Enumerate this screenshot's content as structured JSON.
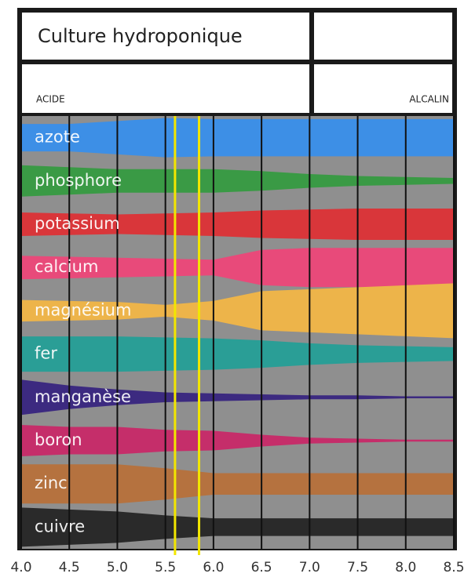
{
  "chart_data": {
    "type": "band",
    "title": "Culture hydroponique",
    "left_label": "ACIDE",
    "right_label": "ALCALIN",
    "x": [
      4.0,
      4.5,
      5.0,
      5.5,
      6.0,
      6.5,
      7.0,
      7.5,
      8.0,
      8.5
    ],
    "xlim": [
      4.0,
      8.5
    ],
    "xticks": [
      {
        "value": 4,
        "label": "4.0"
      },
      4.5,
      {
        "value": 5,
        "label": "5.0"
      },
      5.5,
      {
        "value": 6,
        "label": "6.0"
      },
      6.5,
      {
        "value": 7,
        "label": "7.0"
      },
      7.5,
      {
        "value": 8,
        "label": "8.0"
      },
      8.5
    ],
    "highlight": [
      5.6,
      5.85
    ],
    "highlight_color": "#f2e600",
    "background": "#8f8f8f",
    "series": [
      {
        "name": "azote",
        "color": "#3d8fe6",
        "values": [
          0.7,
          0.7,
          0.85,
          1,
          0.95,
          0.95,
          0.95,
          0.95,
          0.95,
          0.95
        ]
      },
      {
        "name": "phosphore",
        "color": "#3a9a45",
        "values": [
          0.8,
          0.7,
          0.6,
          0.6,
          0.6,
          0.5,
          0.35,
          0.25,
          0.2,
          0.15
        ]
      },
      {
        "name": "potassium",
        "color": "#d9363a",
        "values": [
          0.6,
          0.55,
          0.5,
          0.55,
          0.6,
          0.7,
          0.75,
          0.8,
          0.8,
          0.8
        ]
      },
      {
        "name": "calcium",
        "color": "#e84a7a",
        "values": [
          0.6,
          0.55,
          0.5,
          0.45,
          0.4,
          0.9,
          1,
          1,
          1,
          1
        ]
      },
      {
        "name": "magnésium",
        "color": "#edb44a",
        "values": [
          0.55,
          0.5,
          0.45,
          0.3,
          0.5,
          1,
          1.1,
          1.2,
          1.3,
          1.4
        ]
      },
      {
        "name": "fer",
        "color": "#2a9e96",
        "values": [
          0.9,
          0.9,
          0.9,
          0.85,
          0.8,
          0.7,
          0.55,
          0.45,
          0.4,
          0.35
        ]
      },
      {
        "name": "manganèse",
        "color": "#3c2a80",
        "values": [
          0.9,
          0.6,
          0.4,
          0.25,
          0.2,
          0.15,
          0.1,
          0.1,
          0.05,
          0.05
        ]
      },
      {
        "name": "boron",
        "color": "#c52e6a",
        "values": [
          0.8,
          0.7,
          0.7,
          0.55,
          0.5,
          0.3,
          0.15,
          0.1,
          0.05,
          0.05
        ]
      },
      {
        "name": "zinc",
        "color": "#b5723f",
        "values": [
          1,
          1,
          1,
          0.8,
          0.55,
          0.55,
          0.55,
          0.55,
          0.55,
          0.55
        ]
      },
      {
        "name": "cuivre",
        "color": "#2a2a2a",
        "values": [
          1,
          0.9,
          0.8,
          0.6,
          0.45,
          0.45,
          0.45,
          0.45,
          0.45,
          0.45
        ]
      }
    ]
  }
}
